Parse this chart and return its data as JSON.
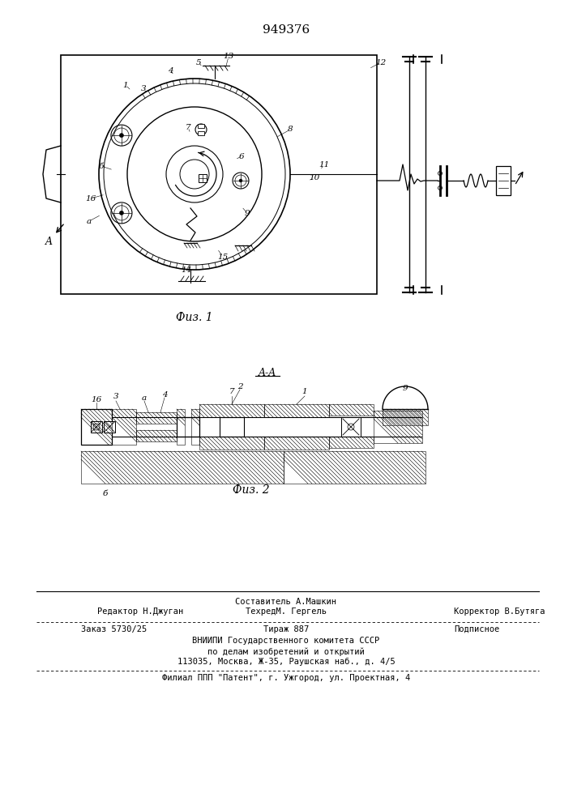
{
  "patent_number": "949376",
  "fig1_caption": "Физ. 1",
  "fig2_caption": "Физ. 2",
  "fig2_section": "A-A",
  "footer_line1_left": "Редактор Н.Джуган",
  "footer_line1_center": "Составитель А.Машкин",
  "footer_line1_right": "Корректор В.Бутяга",
  "footer_line2_center": "ТехредМ. Гергель",
  "footer_line3_left": "Заказ 5730/25",
  "footer_line3_center": "Тираж 887",
  "footer_line3_right": "Подписное",
  "footer_line4": "ВНИИПИ Государственного комитета СССР",
  "footer_line5": "по делам изобретений и открытий",
  "footer_line6": "113035, Москва, Ж-35, Раушская наб., д. 4/5",
  "footer_line7": "Филиал ППП \"Патент\", г. Ужгород, ул. Проектная, 4",
  "bg_color": "#ffffff",
  "line_color": "#000000"
}
